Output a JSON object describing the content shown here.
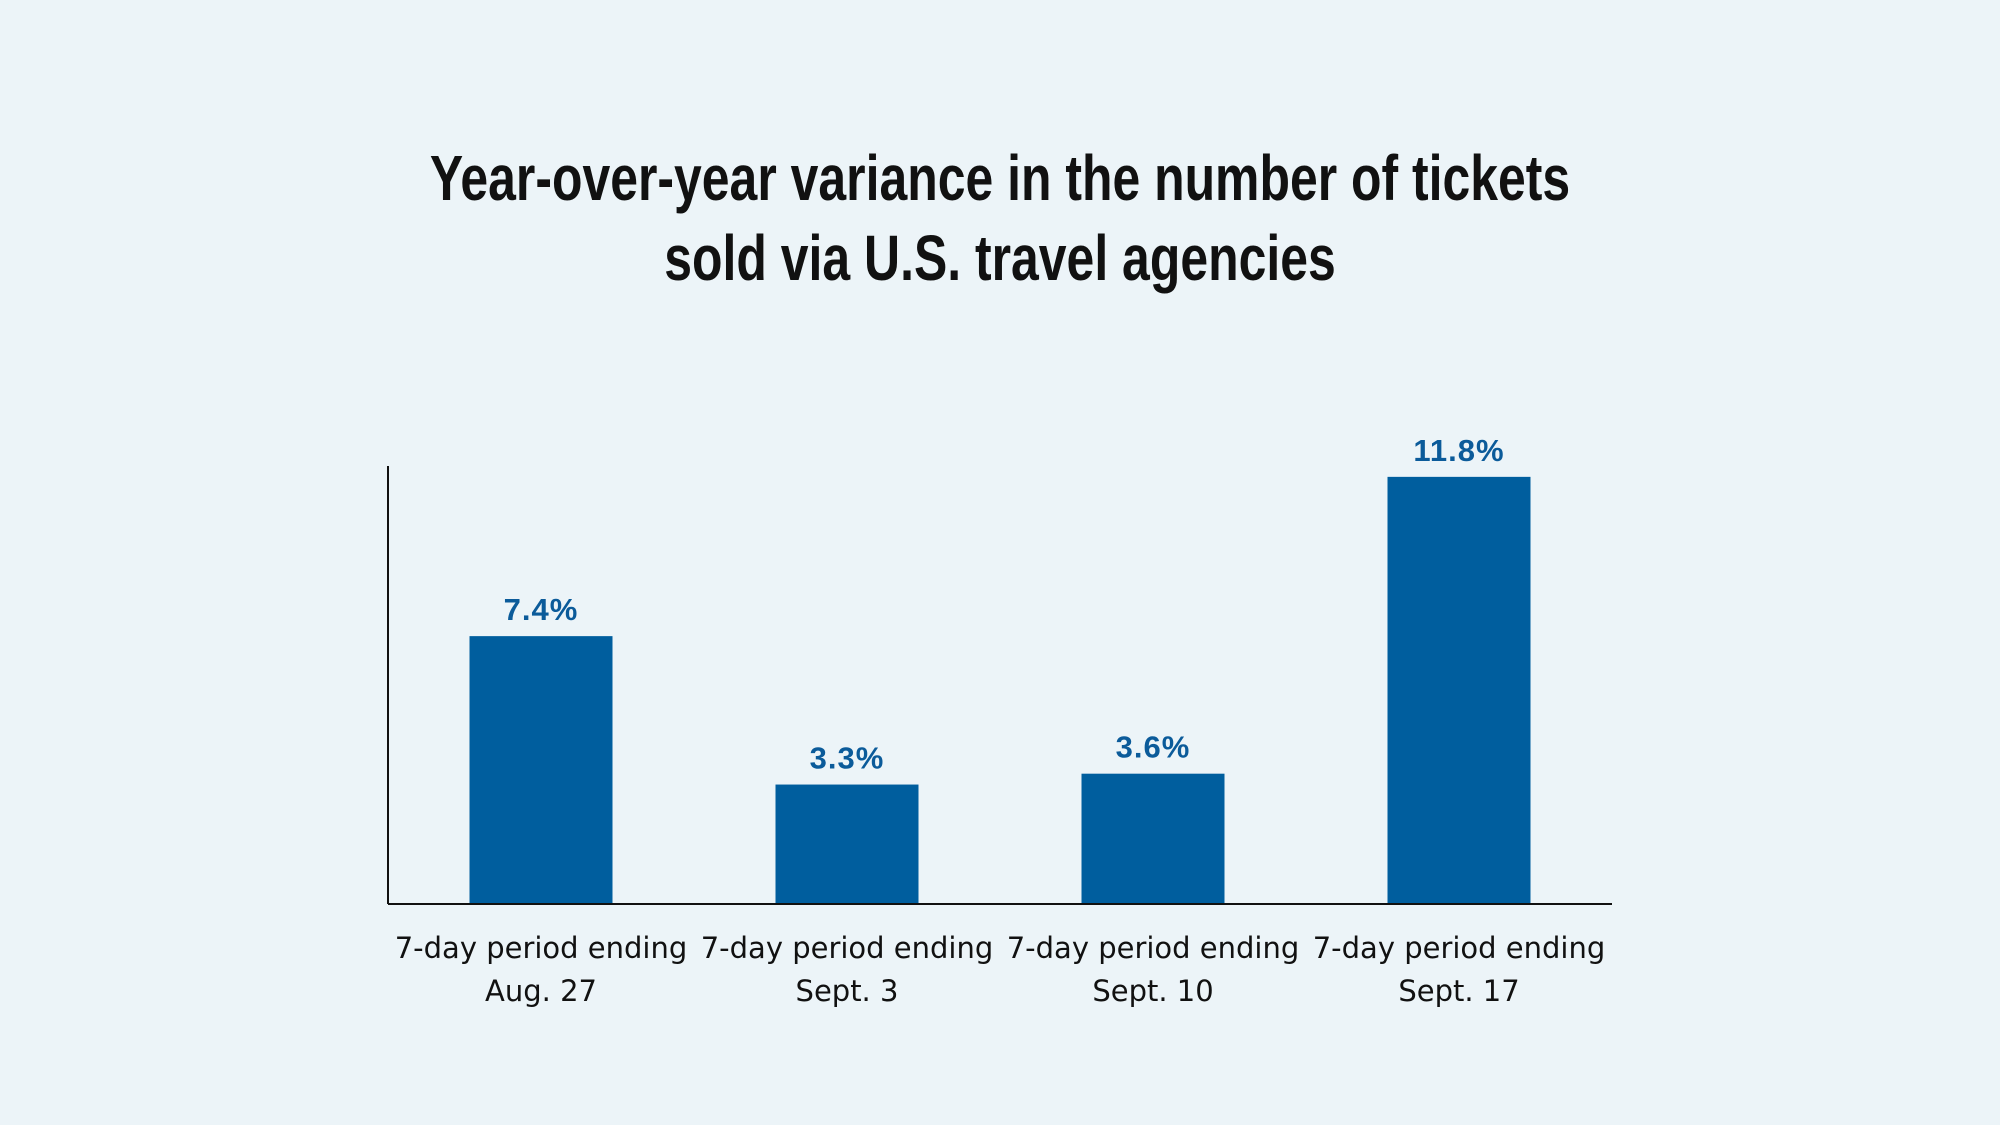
{
  "colors": {
    "background": "#ecf4f8",
    "bar": "#005e9e",
    "label": "#0b5b9a",
    "axis": "#111111",
    "title": "#111111"
  },
  "chart_data": {
    "type": "bar",
    "title_lines": [
      "Year-over-year variance in the number of tickets",
      "sold via U.S. travel agencies"
    ],
    "categories": [
      [
        "7-day period ending",
        "Aug. 27"
      ],
      [
        "7-day period ending",
        "Sept. 3"
      ],
      [
        "7-day period ending",
        "Sept. 10"
      ],
      [
        "7-day period ending",
        "Sept. 17"
      ]
    ],
    "values": [
      7.4,
      3.3,
      3.6,
      11.8
    ],
    "value_labels": [
      "7.4%",
      "3.3%",
      "3.6%",
      "11.8%"
    ],
    "ylim": [
      0,
      12.1
    ],
    "grid": false,
    "legend": "none"
  }
}
